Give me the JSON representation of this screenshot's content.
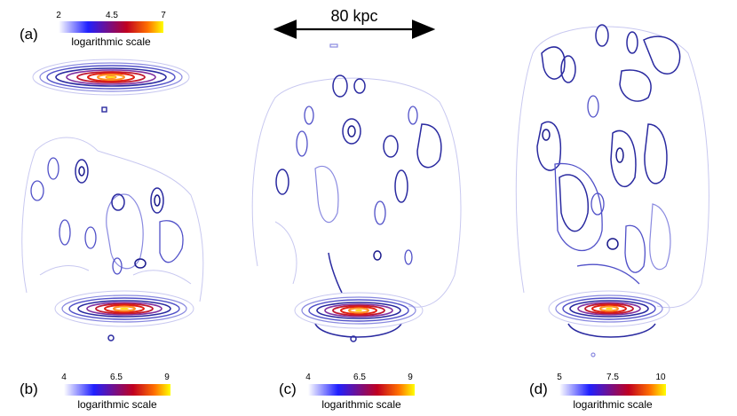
{
  "scale_bar": {
    "label": "80 kpc"
  },
  "panels": [
    {
      "letter": "(a)",
      "caption": "logarithmic scale",
      "ticks": [
        "2",
        "4.5",
        "7"
      ]
    },
    {
      "letter": "(b)",
      "caption": "logarithmic scale",
      "ticks": [
        "4",
        "6.5",
        "9"
      ]
    },
    {
      "letter": "(c)",
      "caption": "logarithmic scale",
      "ticks": [
        "4",
        "6.5",
        "9"
      ]
    },
    {
      "letter": "(d)",
      "caption": "logarithmic scale",
      "ticks": [
        "5",
        "7.5",
        "10"
      ]
    }
  ],
  "colors": {
    "contour_low": "#c8c8f0",
    "contour_mid": "#5050c8",
    "contour_high": "#1a1a8c",
    "core_red": "#d01010",
    "core_orange": "#ff9020",
    "core_yellow": "#ffe020",
    "colorbar_stops": [
      "#ffffff",
      "#2020ff",
      "#c00020",
      "#ff7000",
      "#ffff00"
    ]
  }
}
